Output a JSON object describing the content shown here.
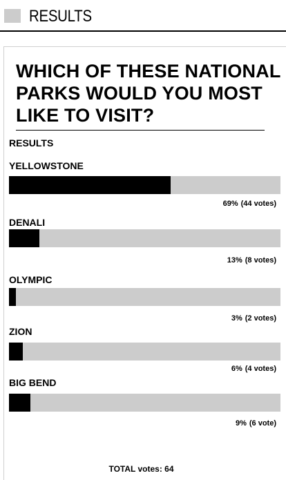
{
  "header": {
    "title": "RESULTS"
  },
  "poll": {
    "question": "WHICH OF THESE NATIONAL PARKS WOULD YOU MOST LIKE TO VISIT?",
    "results_label": "RESULTS",
    "options": [
      {
        "name": "YELLOWSTONE",
        "percent_label": "69%",
        "votes_label": "(44 votes)",
        "percent": 69
      },
      {
        "name": "DENALI",
        "percent_label": "13%",
        "votes_label": "(8 votes)",
        "percent": 13
      },
      {
        "name": "OLYMPIC",
        "percent_label": "3%",
        "votes_label": "(2 votes)",
        "percent": 3
      },
      {
        "name": "ZION",
        "percent_label": "6%",
        "votes_label": "(4 votes)",
        "percent": 6
      },
      {
        "name": "BIG BEND",
        "percent_label": "9%",
        "votes_label": "(6 vote)",
        "percent": 9
      }
    ],
    "total_label": "TOTAL votes: 64"
  },
  "colors": {
    "bar_fill": "#000000",
    "bar_track": "#cccccc",
    "header_square": "#cccccc"
  }
}
